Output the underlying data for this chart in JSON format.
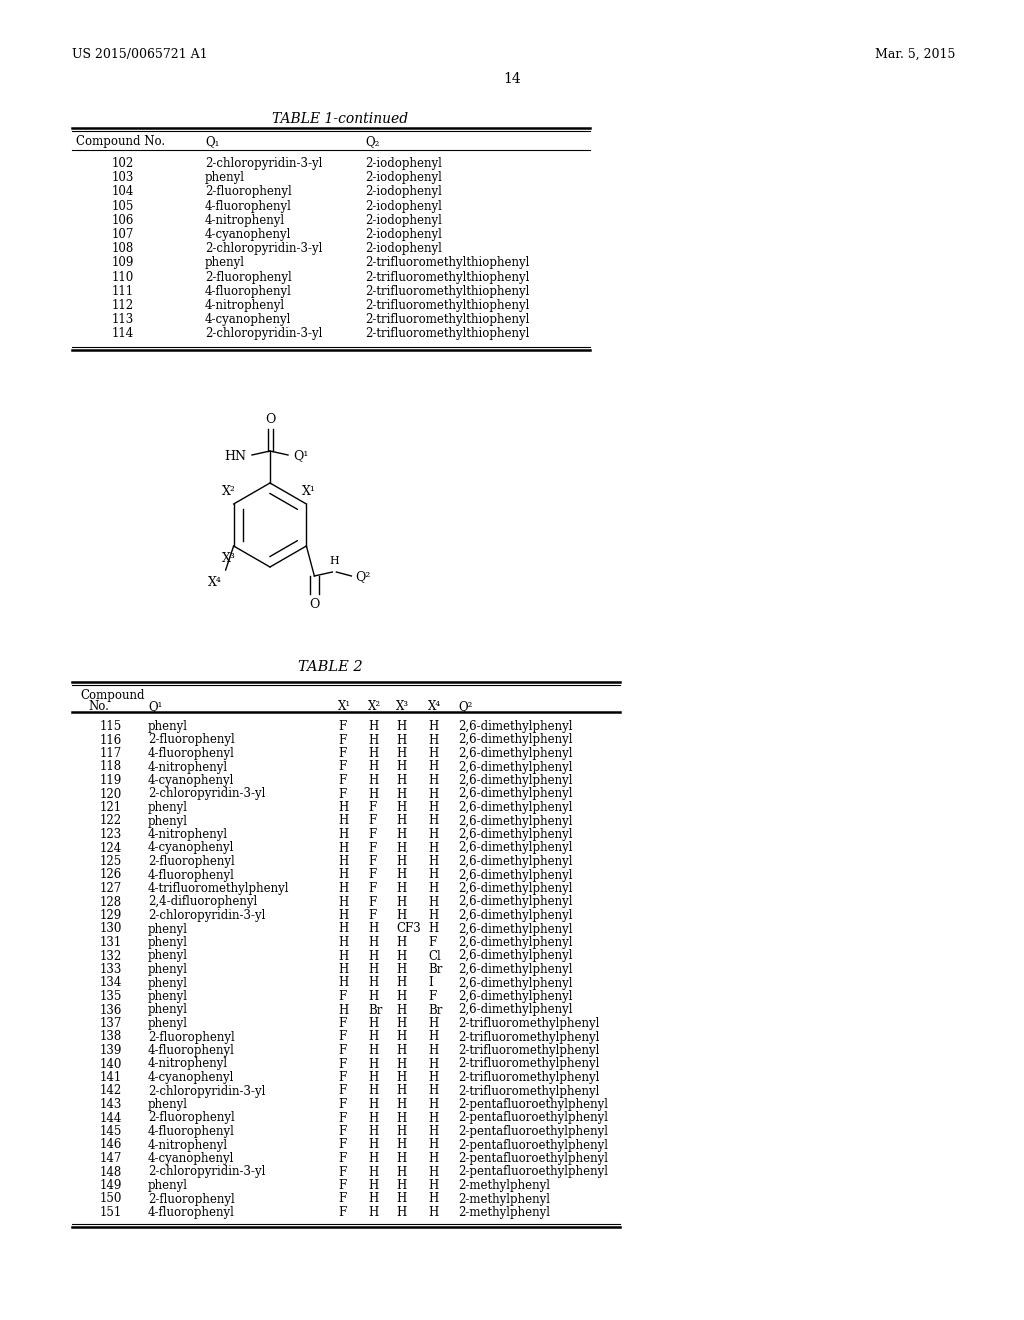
{
  "header_left": "US 2015/0065721 A1",
  "header_right": "Mar. 5, 2015",
  "page_number": "14",
  "table1_title": "TABLE 1-continued",
  "table1_data": [
    [
      "102",
      "2-chloropyridin-3-yl",
      "2-iodophenyl"
    ],
    [
      "103",
      "phenyl",
      "2-iodophenyl"
    ],
    [
      "104",
      "2-fluorophenyl",
      "2-iodophenyl"
    ],
    [
      "105",
      "4-fluorophenyl",
      "2-iodophenyl"
    ],
    [
      "106",
      "4-nitrophenyl",
      "2-iodophenyl"
    ],
    [
      "107",
      "4-cyanophenyl",
      "2-iodophenyl"
    ],
    [
      "108",
      "2-chloropyridin-3-yl",
      "2-iodophenyl"
    ],
    [
      "109",
      "phenyl",
      "2-trifluoromethylthiophenyl"
    ],
    [
      "110",
      "2-fluorophenyl",
      "2-trifluoromethylthiophenyl"
    ],
    [
      "111",
      "4-fluorophenyl",
      "2-trifluoromethylthiophenyl"
    ],
    [
      "112",
      "4-nitrophenyl",
      "2-trifluoromethylthiophenyl"
    ],
    [
      "113",
      "4-cyanophenyl",
      "2-trifluoromethylthiophenyl"
    ],
    [
      "114",
      "2-chloropyridin-3-yl",
      "2-trifluoromethylthiophenyl"
    ]
  ],
  "table2_title": "TABLE 2",
  "table2_data": [
    [
      "115",
      "phenyl",
      "F",
      "H",
      "H",
      "H",
      "2,6-dimethylphenyl"
    ],
    [
      "116",
      "2-fluorophenyl",
      "F",
      "H",
      "H",
      "H",
      "2,6-dimethylphenyl"
    ],
    [
      "117",
      "4-fluorophenyl",
      "F",
      "H",
      "H",
      "H",
      "2,6-dimethylphenyl"
    ],
    [
      "118",
      "4-nitrophenyl",
      "F",
      "H",
      "H",
      "H",
      "2,6-dimethylphenyl"
    ],
    [
      "119",
      "4-cyanophenyl",
      "F",
      "H",
      "H",
      "H",
      "2,6-dimethylphenyl"
    ],
    [
      "120",
      "2-chloropyridin-3-yl",
      "F",
      "H",
      "H",
      "H",
      "2,6-dimethylphenyl"
    ],
    [
      "121",
      "phenyl",
      "H",
      "F",
      "H",
      "H",
      "2,6-dimethylphenyl"
    ],
    [
      "122",
      "phenyl",
      "H",
      "F",
      "H",
      "H",
      "2,6-dimethylphenyl"
    ],
    [
      "123",
      "4-nitrophenyl",
      "H",
      "F",
      "H",
      "H",
      "2,6-dimethylphenyl"
    ],
    [
      "124",
      "4-cyanophenyl",
      "H",
      "F",
      "H",
      "H",
      "2,6-dimethylphenyl"
    ],
    [
      "125",
      "2-fluorophenyl",
      "H",
      "F",
      "H",
      "H",
      "2,6-dimethylphenyl"
    ],
    [
      "126",
      "4-fluorophenyl",
      "H",
      "F",
      "H",
      "H",
      "2,6-dimethylphenyl"
    ],
    [
      "127",
      "4-trifluoromethylphenyl",
      "H",
      "F",
      "H",
      "H",
      "2,6-dimethylphenyl"
    ],
    [
      "128",
      "2,4-difluorophenyl",
      "H",
      "F",
      "H",
      "H",
      "2,6-dimethylphenyl"
    ],
    [
      "129",
      "2-chloropyridin-3-yl",
      "H",
      "F",
      "H",
      "H",
      "2,6-dimethylphenyl"
    ],
    [
      "130",
      "phenyl",
      "H",
      "H",
      "CF3",
      "H",
      "2,6-dimethylphenyl"
    ],
    [
      "131",
      "phenyl",
      "H",
      "H",
      "H",
      "F",
      "2,6-dimethylphenyl"
    ],
    [
      "132",
      "phenyl",
      "H",
      "H",
      "H",
      "Cl",
      "2,6-dimethylphenyl"
    ],
    [
      "133",
      "phenyl",
      "H",
      "H",
      "H",
      "Br",
      "2,6-dimethylphenyl"
    ],
    [
      "134",
      "phenyl",
      "H",
      "H",
      "H",
      "I",
      "2,6-dimethylphenyl"
    ],
    [
      "135",
      "phenyl",
      "F",
      "H",
      "H",
      "F",
      "2,6-dimethylphenyl"
    ],
    [
      "136",
      "phenyl",
      "H",
      "Br",
      "H",
      "Br",
      "2,6-dimethylphenyl"
    ],
    [
      "137",
      "phenyl",
      "F",
      "H",
      "H",
      "H",
      "2-trifluoromethylphenyl"
    ],
    [
      "138",
      "2-fluorophenyl",
      "F",
      "H",
      "H",
      "H",
      "2-trifluoromethylphenyl"
    ],
    [
      "139",
      "4-fluorophenyl",
      "F",
      "H",
      "H",
      "H",
      "2-trifluoromethylphenyl"
    ],
    [
      "140",
      "4-nitrophenyl",
      "F",
      "H",
      "H",
      "H",
      "2-trifluoromethylphenyl"
    ],
    [
      "141",
      "4-cyanophenyl",
      "F",
      "H",
      "H",
      "H",
      "2-trifluoromethylphenyl"
    ],
    [
      "142",
      "2-chloropyridin-3-yl",
      "F",
      "H",
      "H",
      "H",
      "2-trifluoromethylphenyl"
    ],
    [
      "143",
      "phenyl",
      "F",
      "H",
      "H",
      "H",
      "2-pentafluoroethylphenyl"
    ],
    [
      "144",
      "2-fluorophenyl",
      "F",
      "H",
      "H",
      "H",
      "2-pentafluoroethylphenyl"
    ],
    [
      "145",
      "4-fluorophenyl",
      "F",
      "H",
      "H",
      "H",
      "2-pentafluoroethylphenyl"
    ],
    [
      "146",
      "4-nitrophenyl",
      "F",
      "H",
      "H",
      "H",
      "2-pentafluoroethylphenyl"
    ],
    [
      "147",
      "4-cyanophenyl",
      "F",
      "H",
      "H",
      "H",
      "2-pentafluoroethylphenyl"
    ],
    [
      "148",
      "2-chloropyridin-3-yl",
      "F",
      "H",
      "H",
      "H",
      "2-pentafluoroethylphenyl"
    ],
    [
      "149",
      "phenyl",
      "F",
      "H",
      "H",
      "H",
      "2-methylphenyl"
    ],
    [
      "150",
      "2-fluorophenyl",
      "F",
      "H",
      "H",
      "H",
      "2-methylphenyl"
    ],
    [
      "151",
      "4-fluorophenyl",
      "F",
      "H",
      "H",
      "H",
      "2-methylphenyl"
    ]
  ],
  "background_color": "#ffffff",
  "text_color": "#000000"
}
